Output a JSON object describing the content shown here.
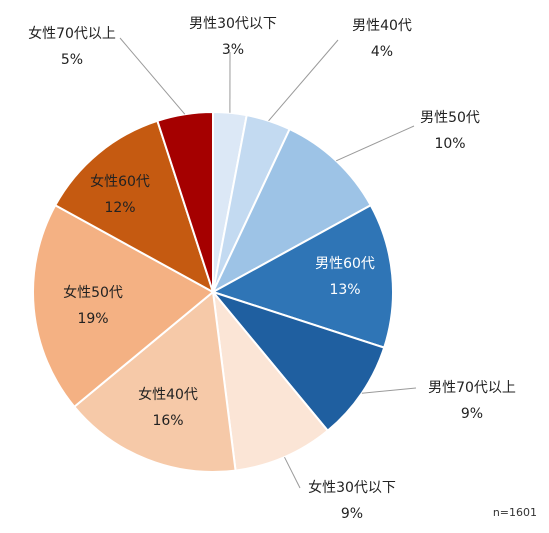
{
  "chart_data": {
    "type": "pie",
    "title": "",
    "slices": [
      {
        "label": "男性30代以下",
        "value": 3,
        "display": "3%",
        "color": "#DCE8F6"
      },
      {
        "label": "男性40代",
        "value": 4,
        "display": "4%",
        "color": "#C3DAF1"
      },
      {
        "label": "男性50代",
        "value": 10,
        "display": "10%",
        "color": "#9DC3E6"
      },
      {
        "label": "男性60代",
        "value": 13,
        "display": "13%",
        "color": "#2F75B6"
      },
      {
        "label": "男性70代以上",
        "value": 9,
        "display": "9%",
        "color": "#1F5FA0"
      },
      {
        "label": "女性30代以下",
        "value": 9,
        "display": "9%",
        "color": "#FBE5D6"
      },
      {
        "label": "女性40代",
        "value": 16,
        "display": "16%",
        "color": "#F6C9A8"
      },
      {
        "label": "女性50代",
        "value": 19,
        "display": "19%",
        "color": "#F4B183"
      },
      {
        "label": "女性60代",
        "value": 12,
        "display": "12%",
        "color": "#C55A11"
      },
      {
        "label": "女性70代以上",
        "value": 5,
        "display": "5%",
        "color": "#A50000"
      }
    ]
  },
  "note": "n=1601"
}
